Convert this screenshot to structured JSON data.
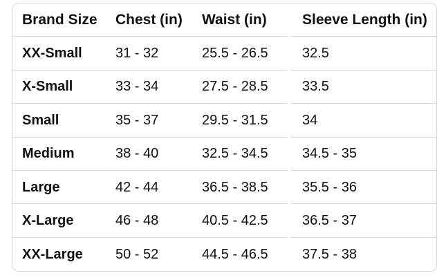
{
  "colors": {
    "text": "#0f1111",
    "border": "#d5d9d9",
    "background": "#ffffff"
  },
  "table": {
    "columns": [
      "Brand Size",
      "Chest (in)",
      "Waist (in)",
      "Sleeve Length (in)"
    ],
    "rows": [
      [
        "XX-Small",
        "31 - 32",
        "25.5 - 26.5",
        "32.5"
      ],
      [
        "X-Small",
        "33 - 34",
        "27.5 - 28.5",
        "33.5"
      ],
      [
        "Small",
        "35 - 37",
        "29.5 - 31.5",
        "34"
      ],
      [
        "Medium",
        "38 - 40",
        "32.5 - 34.5",
        "34.5 - 35"
      ],
      [
        "Large",
        "42 - 44",
        "36.5 - 38.5",
        "35.5 - 36"
      ],
      [
        "X-Large",
        "46 - 48",
        "40.5 - 42.5",
        "36.5 - 37"
      ],
      [
        "XX-Large",
        "50 - 52",
        "44.5 - 46.5",
        "37.5 - 38"
      ]
    ]
  }
}
